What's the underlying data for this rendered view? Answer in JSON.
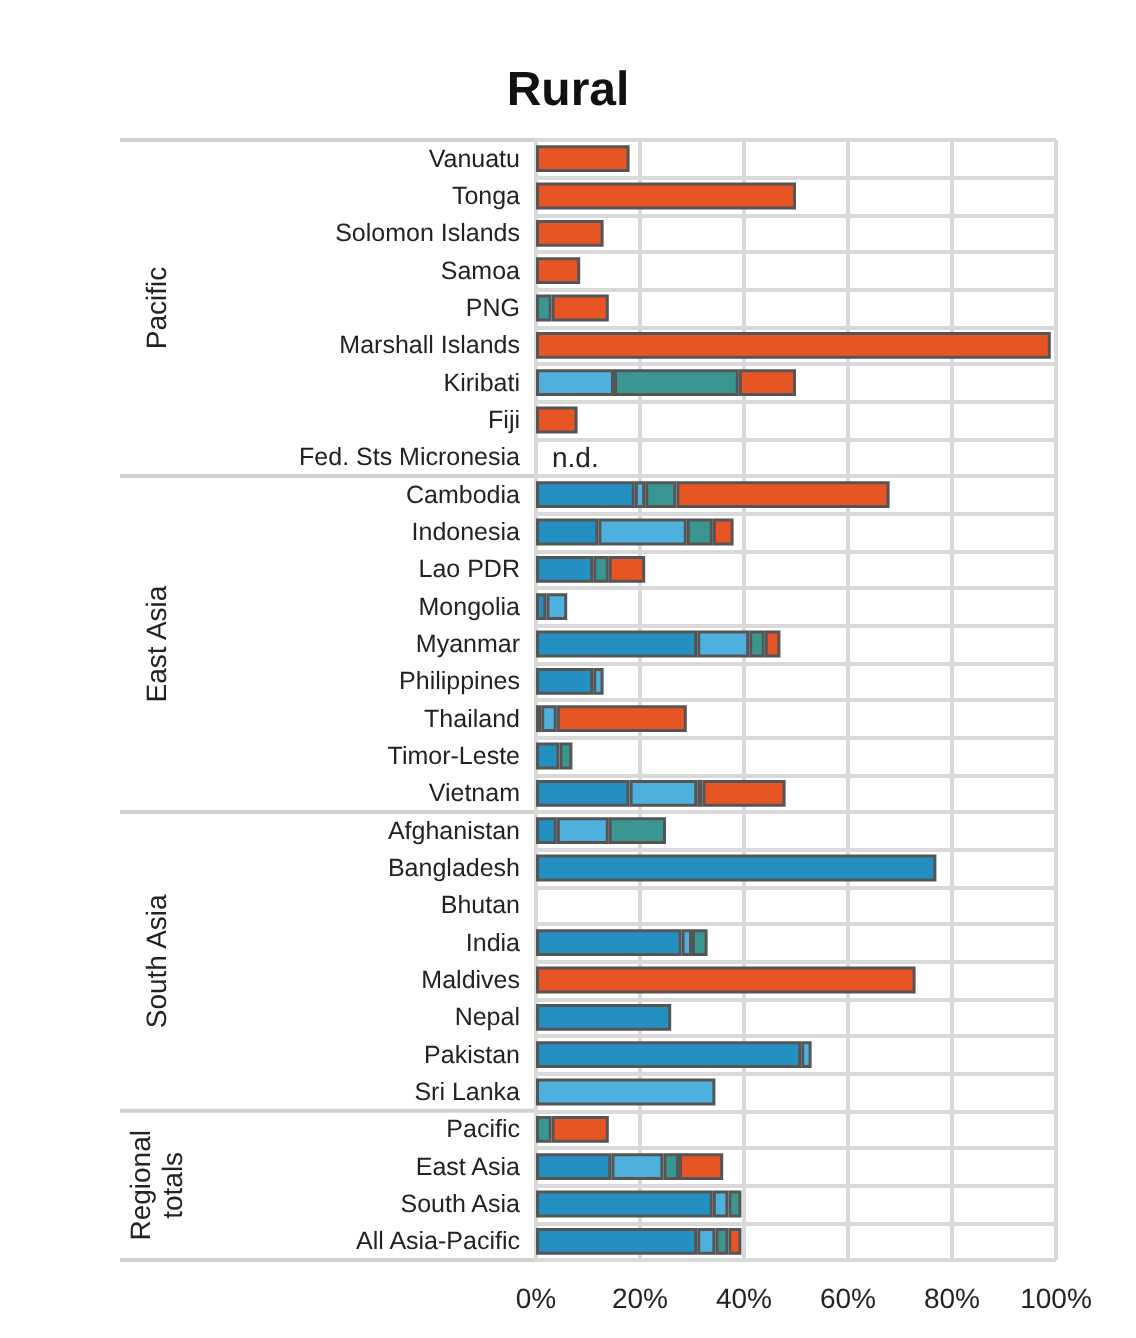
{
  "chart_data": {
    "type": "bar",
    "title": "Rural",
    "orientation": "horizontal",
    "stacked": true,
    "grid": true,
    "categories": [
      "Vanuatu",
      "Tonga",
      "Solomon Islands",
      "Samoa",
      "PNG",
      "Marshall Islands",
      "Kiribati",
      "Fiji",
      "Fed. Sts Micronesia",
      "Cambodia",
      "Indonesia",
      "Lao PDR",
      "Mongolia",
      "Myanmar",
      "Philippines",
      "Thailand",
      "Timor-Leste",
      "Vietnam",
      "Afghanistan",
      "Bangladesh",
      "Bhutan",
      "India",
      "Maldives",
      "Nepal",
      "Pakistan",
      "Sri Lanka",
      "Pacific",
      "East Asia",
      "South Asia",
      "All Asia-Pacific"
    ],
    "series": [
      {
        "color": "#2490c0",
        "values": [
          null,
          null,
          null,
          null,
          null,
          null,
          null,
          null,
          null,
          19,
          12,
          11,
          2,
          31,
          11,
          1,
          4.5,
          18,
          4,
          77,
          null,
          28,
          null,
          26,
          51,
          null,
          null,
          14.5,
          34,
          31
        ]
      },
      {
        "color": "#4eb0dd",
        "values": [
          null,
          null,
          null,
          null,
          null,
          null,
          15,
          null,
          null,
          2,
          17,
          null,
          4,
          10,
          2,
          3,
          null,
          13,
          10,
          null,
          null,
          2,
          null,
          null,
          2,
          34.5,
          null,
          10,
          3,
          3.5
        ]
      },
      {
        "color": "#3a9691",
        "values": [
          null,
          null,
          null,
          null,
          3,
          null,
          24,
          null,
          null,
          6,
          5,
          3,
          null,
          3,
          null,
          null,
          2.5,
          1,
          11,
          null,
          null,
          3,
          null,
          null,
          null,
          null,
          3,
          3,
          2.5,
          2.5
        ]
      },
      {
        "color": "#e85524",
        "values": [
          18,
          50,
          13,
          8.5,
          11,
          99,
          11,
          8,
          null,
          41,
          4,
          7,
          null,
          3,
          null,
          25,
          null,
          16,
          null,
          null,
          null,
          null,
          73,
          null,
          null,
          null,
          11,
          8.5,
          null,
          2.5
        ]
      }
    ],
    "xlim": [
      0,
      100
    ],
    "xticks": [
      {
        "value": 0,
        "label": "0%"
      },
      {
        "value": 20,
        "label": "20%"
      },
      {
        "value": 40,
        "label": "40%"
      },
      {
        "value": 60,
        "label": "60%"
      },
      {
        "value": 80,
        "label": "80%"
      },
      {
        "value": 100,
        "label": "100%"
      }
    ],
    "annotations": [
      "Pacific",
      "East Asia",
      "South Asia",
      "Regional\ntotals",
      {
        "text": "n.d.",
        "x": 0,
        "y": "Fed. Sts Micronesia"
      }
    ]
  }
}
